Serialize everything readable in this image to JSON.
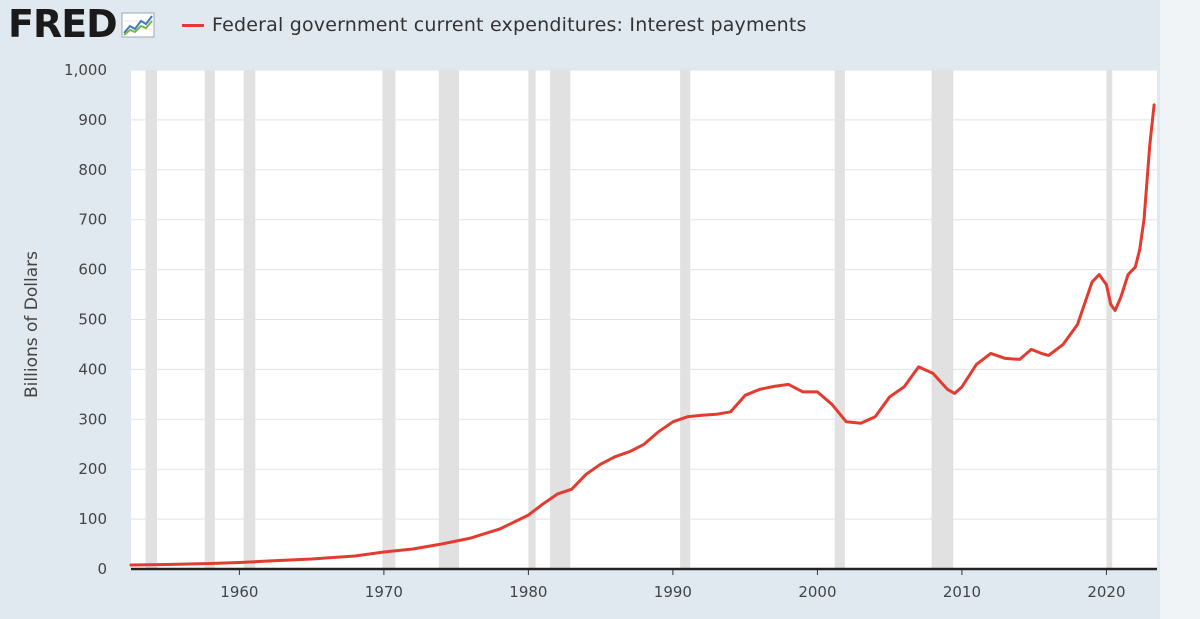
{
  "logo": {
    "text": "FRED",
    "icon": "fred-chart-icon"
  },
  "legend": {
    "label": "Federal government current expenditures: Interest payments",
    "color": "#e33b2f"
  },
  "colors": {
    "background": "#e1e9f0",
    "plot_bg": "#ffffff",
    "grid": "#dfe3e8",
    "recession": "#e1e1e1",
    "line": "#e33b2f"
  },
  "chart_data": {
    "type": "line",
    "title": "",
    "xlabel": "",
    "ylabel": "Billions of Dollars",
    "xlim": [
      1952.5,
      2023.5
    ],
    "ylim": [
      0,
      1000
    ],
    "grid": true,
    "legend_position": "top",
    "y_ticks": [
      0,
      100,
      200,
      300,
      400,
      500,
      600,
      700,
      800,
      900,
      1000
    ],
    "y_tick_labels": [
      "0",
      "100",
      "200",
      "300",
      "400",
      "500",
      "600",
      "700",
      "800",
      "900",
      "1,000"
    ],
    "x_ticks": [
      1960,
      1970,
      1980,
      1990,
      2000,
      2010,
      2020
    ],
    "x_tick_labels": [
      "1960",
      "1970",
      "1980",
      "1990",
      "2000",
      "2010",
      "2020"
    ],
    "recessions": [
      [
        1953.5,
        1954.3
      ],
      [
        1957.6,
        1958.3
      ],
      [
        1960.3,
        1961.1
      ],
      [
        1969.9,
        1970.8
      ],
      [
        1973.8,
        1975.2
      ],
      [
        1980.0,
        1980.5
      ],
      [
        1981.5,
        1982.9
      ],
      [
        1990.5,
        1991.2
      ],
      [
        2001.2,
        2001.9
      ],
      [
        2007.9,
        2009.4
      ],
      [
        2020.0,
        2020.4
      ]
    ],
    "series": [
      {
        "name": "Federal government current expenditures: Interest payments",
        "color": "#e33b2f",
        "x": [
          1952.5,
          1955,
          1958,
          1960,
          1962,
          1965,
          1968,
          1970,
          1972,
          1974,
          1976,
          1978,
          1980,
          1981,
          1982,
          1983,
          1984,
          1985,
          1986,
          1987,
          1988,
          1989,
          1990,
          1991,
          1992,
          1993,
          1994,
          1995,
          1996,
          1997,
          1998,
          1999,
          2000,
          2001,
          2002,
          2003,
          2004,
          2005,
          2006,
          2007,
          2008,
          2009,
          2009.5,
          2010,
          2011,
          2012,
          2013,
          2014,
          2014.8,
          2015.5,
          2016,
          2017,
          2018,
          2019,
          2019.5,
          2020,
          2020.3,
          2020.6,
          2021,
          2021.5,
          2022,
          2022.3,
          2022.6,
          2023,
          2023.3
        ],
        "values": [
          8,
          9,
          11,
          13,
          16,
          20,
          26,
          34,
          40,
          50,
          62,
          80,
          108,
          130,
          150,
          160,
          190,
          210,
          225,
          235,
          250,
          275,
          295,
          305,
          308,
          310,
          315,
          348,
          360,
          366,
          370,
          355,
          355,
          330,
          295,
          292,
          305,
          345,
          365,
          405,
          392,
          360,
          352,
          365,
          410,
          432,
          422,
          420,
          440,
          432,
          428,
          450,
          490,
          575,
          590,
          570,
          530,
          518,
          545,
          590,
          605,
          640,
          700,
          850,
          930
        ]
      }
    ]
  }
}
